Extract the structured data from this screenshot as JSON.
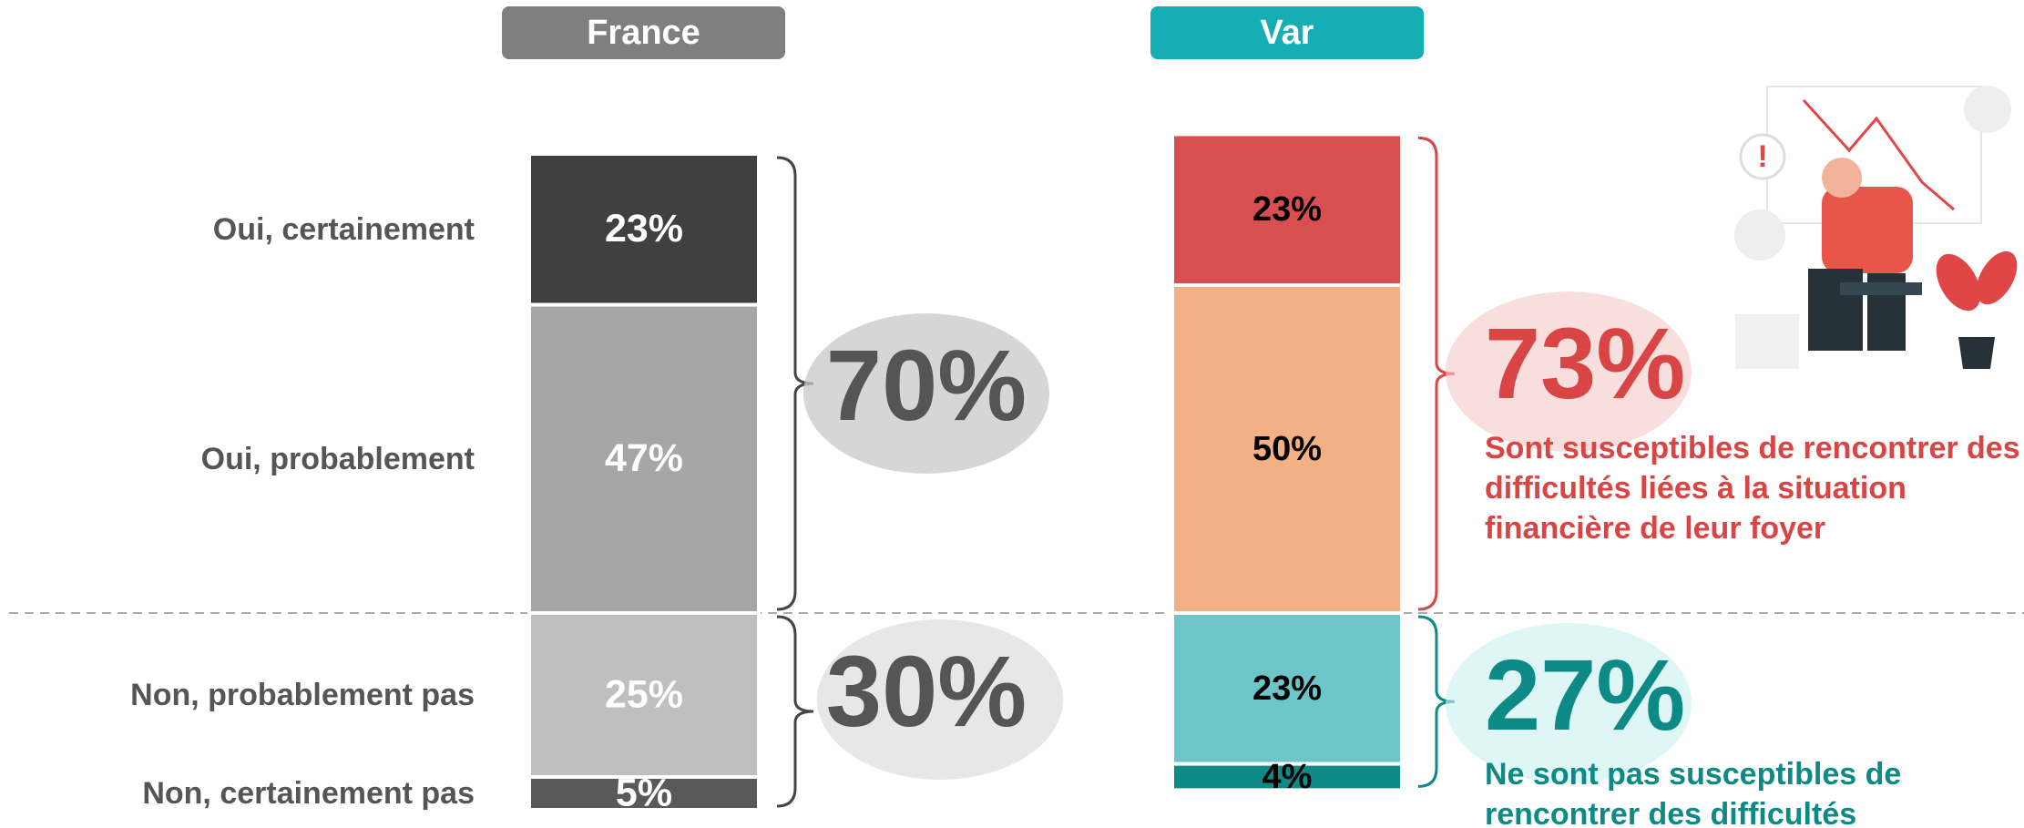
{
  "chart_data": [
    {
      "type": "stacked_bar",
      "title": "France",
      "title_color": "#7f7f7f",
      "categories": [
        "Oui, certainement",
        "Oui, probablement",
        "Non, probablement pas",
        "Non, certainement pas"
      ],
      "values": [
        23,
        47,
        25,
        5
      ],
      "value_labels": [
        "23%",
        "47%",
        "25%",
        "5%"
      ],
      "colors": [
        "#404040",
        "#a6a6a6",
        "#bfbfbf",
        "#595959"
      ],
      "label_color": "#ffffff",
      "totals": [
        70,
        30
      ],
      "total_labels": [
        "70%",
        "30%"
      ],
      "total_colors": [
        "#555555",
        "#555555"
      ]
    },
    {
      "type": "stacked_bar",
      "title": "Var",
      "title_color": "#14aeb4",
      "values": [
        23,
        50,
        23,
        4
      ],
      "value_labels": [
        "23%",
        "50%",
        "23%",
        "4%"
      ],
      "colors": [
        "#d94f4f",
        "#f2b084",
        "#6cc5c9",
        "#0f8a86"
      ],
      "label_color": "#000000",
      "totals": [
        73,
        27
      ],
      "total_labels": [
        "73%",
        "27%"
      ],
      "total_colors": [
        "#d94444",
        "#0d8a85"
      ],
      "total_notes": [
        "Sont susceptibles de rencontrer des difficultés liées à la situation financière de leur foyer",
        "Ne sont pas susceptibles de rencontrer des difficultés"
      ]
    }
  ]
}
